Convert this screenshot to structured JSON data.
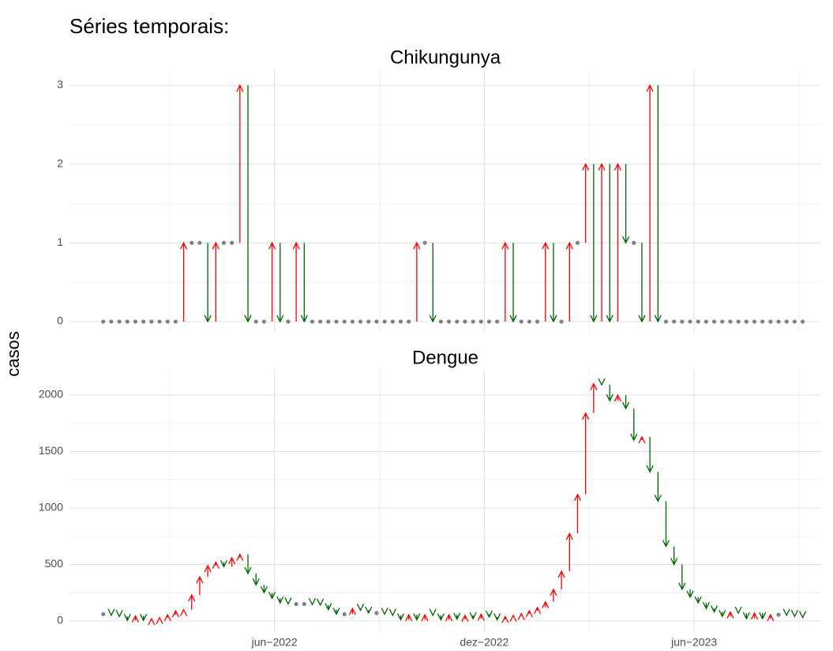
{
  "title": "Séries temporais:",
  "ylabel": "casos",
  "x": [
    0,
    1,
    2,
    3,
    4,
    5,
    6,
    7,
    8,
    9,
    10,
    11,
    12,
    13,
    14,
    15,
    16,
    17,
    18,
    19,
    20,
    21,
    22,
    23,
    24,
    25,
    26,
    27,
    28,
    29,
    30,
    31,
    32,
    33,
    34,
    35,
    36,
    37,
    38,
    39,
    40,
    41,
    42,
    43,
    44,
    45,
    46,
    47,
    48,
    49,
    50,
    51,
    52,
    53,
    54,
    55,
    56,
    57,
    58,
    59,
    60,
    61,
    62,
    63,
    64,
    65,
    66,
    67,
    68,
    69,
    70,
    71,
    72,
    73,
    74,
    75,
    76,
    77,
    78,
    79,
    80,
    81,
    82,
    83,
    84,
    85,
    86,
    87
  ],
  "xlim": [
    -4.2,
    89.3
  ],
  "xticks": [
    {
      "value": 21.3,
      "label": "jun−2022"
    },
    {
      "value": 47.4,
      "label": "dez−2022"
    },
    {
      "value": 73.5,
      "label": "jun−2023"
    }
  ],
  "up_color": "#ff0000",
  "down_color": "#006400",
  "flat_color": "#808080",
  "chart_data": [
    {
      "type": "arrow",
      "title": "Chikungunya",
      "values": [
        0,
        0,
        0,
        0,
        0,
        0,
        0,
        0,
        0,
        0,
        1,
        1,
        1,
        0,
        1,
        1,
        1,
        3,
        0,
        0,
        0,
        1,
        0,
        0,
        1,
        0,
        0,
        0,
        0,
        0,
        0,
        0,
        0,
        0,
        0,
        0,
        0,
        0,
        0,
        1,
        1,
        0,
        0,
        0,
        0,
        0,
        0,
        0,
        0,
        0,
        1,
        0,
        0,
        0,
        0,
        1,
        0,
        0,
        1,
        1,
        2,
        0,
        2,
        0,
        2,
        1,
        1,
        0,
        3,
        0,
        0,
        0,
        0,
        0,
        0,
        0,
        0,
        0,
        0,
        0,
        0,
        0,
        0,
        0,
        0,
        0,
        0,
        0
      ],
      "ylim": [
        -0.13,
        3.2
      ],
      "yticks": [
        0,
        1,
        2,
        3
      ]
    },
    {
      "type": "arrow",
      "title": "Dengue",
      "values": [
        60,
        50,
        40,
        5,
        45,
        5,
        20,
        30,
        55,
        90,
        100,
        230,
        390,
        490,
        520,
        480,
        560,
        590,
        420,
        320,
        250,
        200,
        160,
        150,
        150,
        150,
        145,
        140,
        100,
        60,
        60,
        110,
        95,
        70,
        70,
        60,
        50,
        10,
        55,
        10,
        55,
        50,
        10,
        55,
        15,
        50,
        20,
        60,
        35,
        10,
        40,
        50,
        65,
        90,
        120,
        170,
        280,
        440,
        775,
        1120,
        1840,
        2100,
        2090,
        1950,
        2000,
        1880,
        1600,
        1630,
        1320,
        1060,
        660,
        500,
        280,
        210,
        160,
        110,
        80,
        40,
        80,
        70,
        20,
        70,
        20,
        55,
        55,
        50,
        40,
        30
      ],
      "ylim": [
        -98,
        2224
      ],
      "yticks": [
        0,
        500,
        1000,
        1500,
        2000
      ]
    }
  ]
}
